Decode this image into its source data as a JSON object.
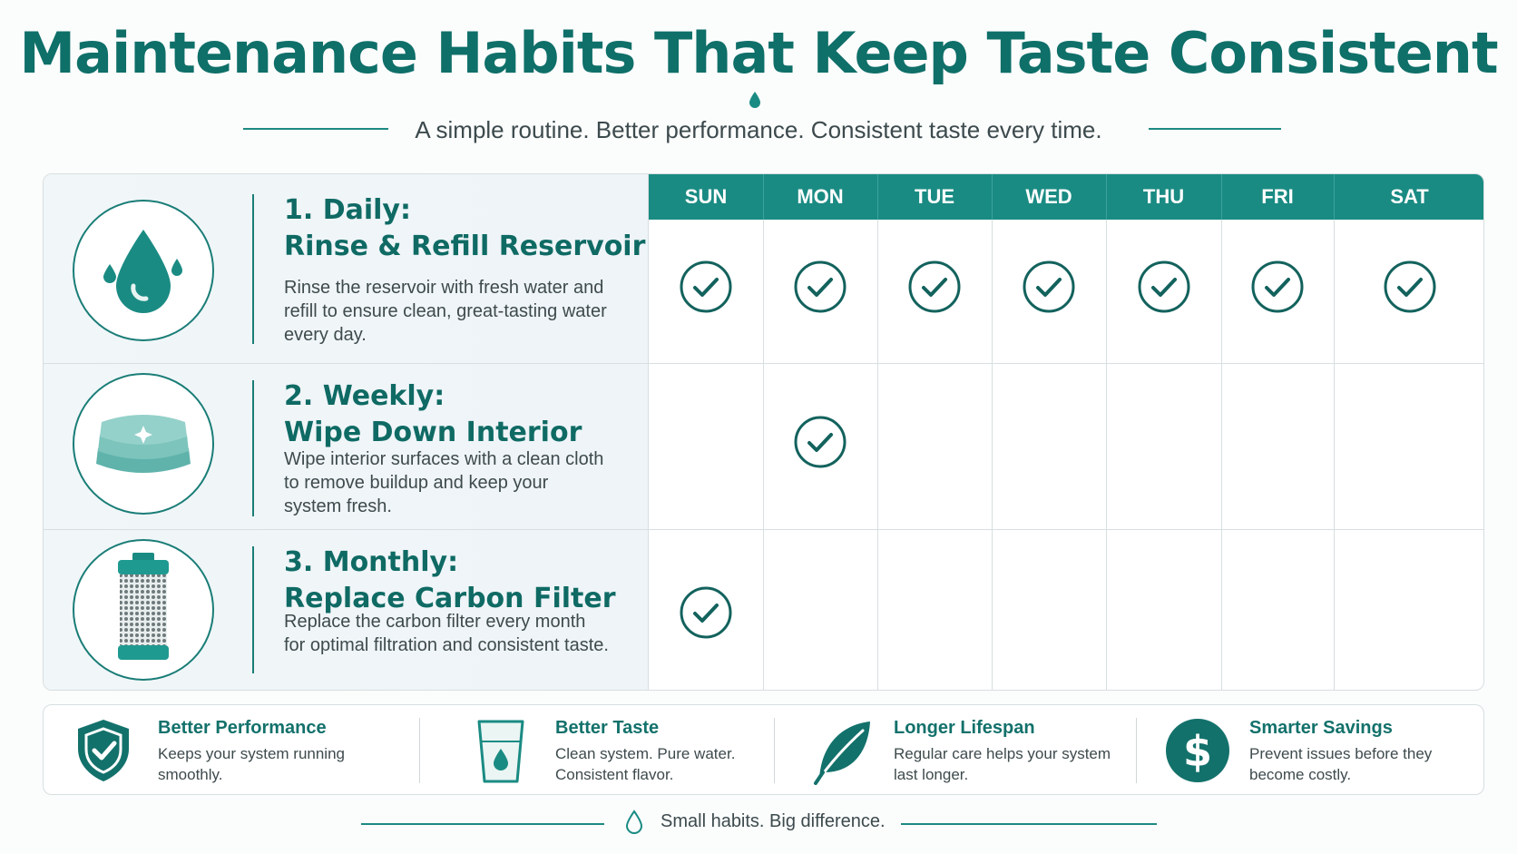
{
  "header": {
    "title": "Maintenance Habits That Keep Taste Consistent",
    "subtitle": "A simple routine. Better performance. Consistent taste every time."
  },
  "days": [
    "SUN",
    "MON",
    "TUE",
    "WED",
    "THU",
    "FRI",
    "SAT"
  ],
  "tasks": [
    {
      "title_line1": "1. Daily:",
      "title_line2": "Rinse & Refill Reservoir",
      "description": "Rinse the reservoir with fresh water and refill to ensure clean, great-tasting water every day.",
      "icon": "water-drop-icon",
      "checked_days": [
        "SUN",
        "MON",
        "TUE",
        "WED",
        "THU",
        "FRI",
        "SAT"
      ]
    },
    {
      "title_line1": "2. Weekly:",
      "title_line2": "Wipe Down Interior",
      "description": "Wipe interior surfaces with a clean cloth to remove buildup and keep your system fresh.",
      "icon": "cloth-icon",
      "checked_days": [
        "MON"
      ]
    },
    {
      "title_line1": "3. Monthly:",
      "title_line2": "Replace Carbon Filter",
      "description": "Replace the carbon filter every month for optimal filtration and consistent taste.",
      "icon": "carbon-filter-icon",
      "checked_days": [
        "SUN"
      ]
    }
  ],
  "benefits": [
    {
      "title": "Better Performance",
      "description": "Keeps your system running smoothly.",
      "icon": "shield-check-icon"
    },
    {
      "title": "Better Taste",
      "description": "Clean system. Pure water. Consistent flavor.",
      "icon": "water-glass-icon"
    },
    {
      "title": "Longer Lifespan",
      "description": "Regular care helps your system last longer.",
      "icon": "leaf-icon"
    },
    {
      "title": "Smarter Savings",
      "description": "Prevent issues before they become costly.",
      "icon": "dollar-icon"
    }
  ],
  "footer": {
    "text": "Small habits. Big difference."
  },
  "colors": {
    "primary": "#1a8b83",
    "dark_teal": "#0f6f69",
    "check": "#13625d"
  }
}
